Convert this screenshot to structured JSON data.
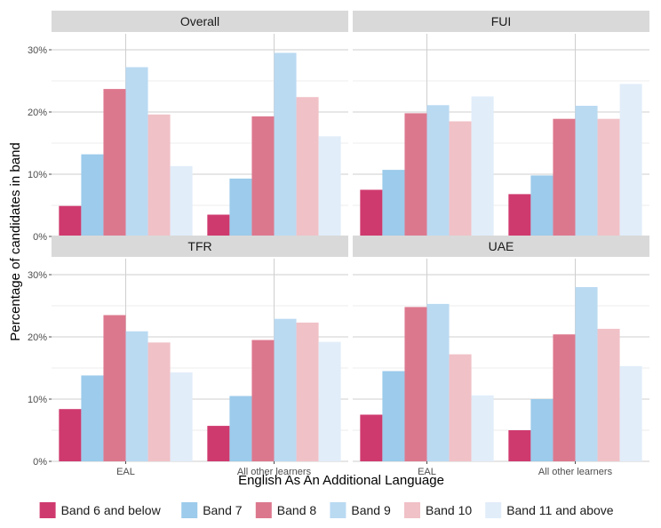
{
  "chart_data": {
    "type": "bar",
    "ylabel": "Percentage of candidates in band",
    "xlabel": "English As An Additional Language",
    "categories": [
      "EAL",
      "All other learners"
    ],
    "ylim": [
      0,
      30
    ],
    "yticks": [
      0,
      10,
      20,
      30
    ],
    "ytick_suffix": "%",
    "grid": true,
    "legend_position": "bottom",
    "series_meta": [
      {
        "name": "Band 6 and below",
        "color": "#cf3a6e"
      },
      {
        "name": "Band 7",
        "color": "#9ccbeb"
      },
      {
        "name": "Band 8",
        "color": "#dc788e"
      },
      {
        "name": "Band 9",
        "color": "#badaf2"
      },
      {
        "name": "Band 10",
        "color": "#f0c1c7"
      },
      {
        "name": "Band 11 and above",
        "color": "#e1edf9"
      }
    ],
    "panels": [
      {
        "title": "Overall",
        "series": [
          {
            "name": "Band 6 and below",
            "values": [
              4.9,
              3.5
            ]
          },
          {
            "name": "Band 7",
            "values": [
              13.2,
              9.3
            ]
          },
          {
            "name": "Band 8",
            "values": [
              23.7,
              19.3
            ]
          },
          {
            "name": "Band 9",
            "values": [
              27.2,
              29.5
            ]
          },
          {
            "name": "Band 10",
            "values": [
              19.6,
              22.4
            ]
          },
          {
            "name": "Band 11 and above",
            "values": [
              11.3,
              16.1
            ]
          }
        ]
      },
      {
        "title": "FUI",
        "series": [
          {
            "name": "Band 6 and below",
            "values": [
              7.5,
              6.8
            ]
          },
          {
            "name": "Band 7",
            "values": [
              10.7,
              9.8
            ]
          },
          {
            "name": "Band 8",
            "values": [
              19.8,
              18.9
            ]
          },
          {
            "name": "Band 9",
            "values": [
              21.1,
              21.0
            ]
          },
          {
            "name": "Band 10",
            "values": [
              18.5,
              18.9
            ]
          },
          {
            "name": "Band 11 and above",
            "values": [
              22.5,
              24.5
            ]
          }
        ]
      },
      {
        "title": "TFR",
        "series": [
          {
            "name": "Band 6 and below",
            "values": [
              8.4,
              5.7
            ]
          },
          {
            "name": "Band 7",
            "values": [
              13.8,
              10.5
            ]
          },
          {
            "name": "Band 8",
            "values": [
              23.5,
              19.5
            ]
          },
          {
            "name": "Band 9",
            "values": [
              20.9,
              22.9
            ]
          },
          {
            "name": "Band 10",
            "values": [
              19.1,
              22.3
            ]
          },
          {
            "name": "Band 11 and above",
            "values": [
              14.3,
              19.2
            ]
          }
        ]
      },
      {
        "title": "UAE",
        "series": [
          {
            "name": "Band 6 and below",
            "values": [
              7.5,
              5.0
            ]
          },
          {
            "name": "Band 7",
            "values": [
              14.5,
              10.0
            ]
          },
          {
            "name": "Band 8",
            "values": [
              24.8,
              20.4
            ]
          },
          {
            "name": "Band 9",
            "values": [
              25.3,
              28.0
            ]
          },
          {
            "name": "Band 10",
            "values": [
              17.2,
              21.3
            ]
          },
          {
            "name": "Band 11 and above",
            "values": [
              10.6,
              15.3
            ]
          }
        ]
      }
    ]
  }
}
